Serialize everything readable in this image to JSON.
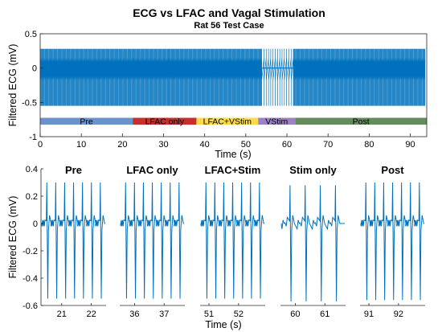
{
  "figure": {
    "title": "ECG vs LFAC and Vagal Stimulation",
    "subtitle": "Rat 56 Test Case"
  },
  "chart_data": [
    {
      "type": "line",
      "title": "ECG vs LFAC and Vagal Stimulation",
      "subtitle": "Rat 56 Test Case",
      "xlabel": "Time (s)",
      "ylabel": "Filtered ECG (mV)",
      "xlim": [
        0,
        94
      ],
      "ylim": [
        -1,
        0.5
      ],
      "xticks": [
        0,
        10,
        20,
        30,
        40,
        50,
        60,
        70,
        80,
        90
      ],
      "yticks": [
        0.5,
        0,
        -0.5,
        -1
      ],
      "ytick_labels": [
        "0.5",
        "0",
        "-0.5",
        "-1"
      ],
      "line_color": "#0072BD",
      "signal": {
        "beat_period_s": 0.165,
        "beat_period_stim_s": 0.55,
        "baseline_mv": 0,
        "r_peak_mv": 0.28,
        "s_trough_mv": -0.55,
        "dense_band_mv": [
          -0.18,
          0.15
        ]
      },
      "segments": [
        {
          "label": "Pre",
          "start": 0,
          "end": 22.5,
          "color": "#6A93CE"
        },
        {
          "label": "LFAC only",
          "start": 22.5,
          "end": 38,
          "color": "#C5302B"
        },
        {
          "label": "LFAC+VStim",
          "start": 38,
          "end": 53,
          "color": "#FDD94F"
        },
        {
          "label": "VStim",
          "start": 53,
          "end": 62,
          "color": "#9B82C6"
        },
        {
          "label": "Post",
          "start": 62,
          "end": 94,
          "color": "#638B5B"
        }
      ],
      "segment_bar_y_mv": [
        -0.825,
        -0.725
      ]
    },
    {
      "type": "line",
      "xlabel": "Time (s)",
      "ylabel": "Filtered ECG (mV)",
      "ylim": [
        -0.6,
        0.4
      ],
      "yticks": [
        0.4,
        0.2,
        0,
        -0.2,
        -0.4,
        -0.6
      ],
      "ytick_labels": [
        "0.4",
        "0.2",
        "0",
        "-0.2",
        "-0.4",
        "-0.6"
      ],
      "line_color": "#0072BD",
      "panels": [
        {
          "title": "Pre",
          "xlim": [
            20.3,
            22.5
          ],
          "xticks": [
            21,
            22
          ],
          "r_peak": 0.3,
          "s_trough": -0.55,
          "beats": 7
        },
        {
          "title": "LFAC only",
          "xlim": [
            35.5,
            37.7
          ],
          "xticks": [
            36,
            37
          ],
          "r_peak": 0.3,
          "s_trough": -0.55,
          "beats": 7
        },
        {
          "title": "LFAC+Stim",
          "xlim": [
            50.7,
            52.9
          ],
          "xticks": [
            51,
            52
          ],
          "r_peak": 0.3,
          "s_trough": -0.55,
          "beats": 7
        },
        {
          "title": "Stim only",
          "xlim": [
            59.5,
            61.7
          ],
          "xticks": [
            60,
            61
          ],
          "r_peak": 0.28,
          "s_trough": -0.57,
          "beats": 4
        },
        {
          "title": "Post",
          "xlim": [
            90.7,
            92.9
          ],
          "xticks": [
            91,
            92
          ],
          "r_peak": 0.3,
          "s_trough": -0.56,
          "beats": 7
        }
      ]
    }
  ]
}
